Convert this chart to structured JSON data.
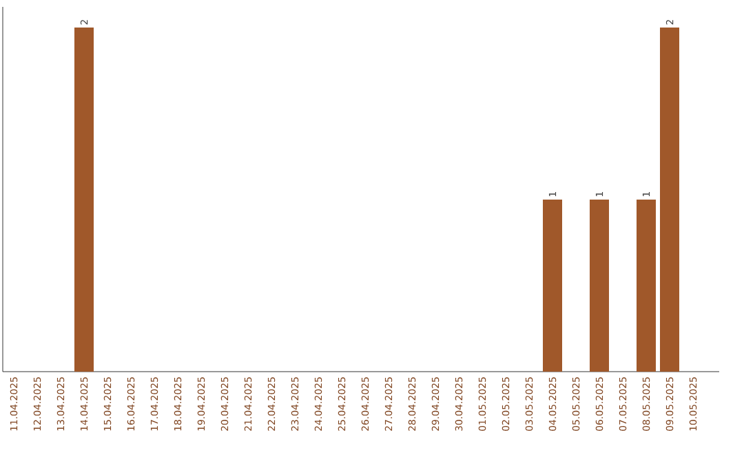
{
  "chart_data": {
    "type": "bar",
    "categories": [
      "11.04.2025",
      "12.04.2025",
      "13.04.2025",
      "14.04.2025",
      "15.04.2025",
      "16.04.2025",
      "17.04.2025",
      "18.04.2025",
      "19.04.2025",
      "20.04.2025",
      "21.04.2025",
      "22.04.2025",
      "23.04.2025",
      "24.04.2025",
      "25.04.2025",
      "26.04.2025",
      "27.04.2025",
      "28.04.2025",
      "29.04.2025",
      "30.04.2025",
      "01.05.2025",
      "02.05.2025",
      "03.05.2025",
      "04.05.2025",
      "05.05.2025",
      "06.05.2025",
      "07.05.2025",
      "08.05.2025",
      "09.05.2025",
      "10.05.2025"
    ],
    "values": [
      0,
      0,
      0,
      2,
      0,
      0,
      0,
      0,
      0,
      0,
      0,
      0,
      0,
      0,
      0,
      0,
      0,
      0,
      0,
      0,
      0,
      0,
      0,
      1,
      0,
      1,
      0,
      1,
      2,
      0
    ],
    "color": "#a0582a",
    "value_labels": [
      null,
      null,
      null,
      "2",
      null,
      null,
      null,
      null,
      null,
      null,
      null,
      null,
      null,
      null,
      null,
      null,
      null,
      null,
      null,
      null,
      null,
      null,
      null,
      "1",
      null,
      "1",
      null,
      "1",
      "2",
      null
    ]
  }
}
